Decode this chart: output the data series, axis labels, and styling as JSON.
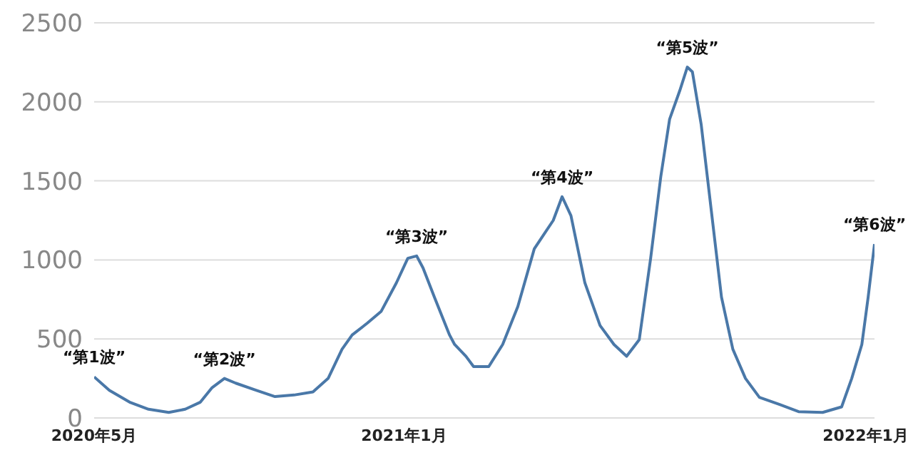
{
  "chart_data": {
    "type": "line",
    "x": [
      "2020-05-01",
      "2020-05-13",
      "2020-05-29",
      "2020-06-13",
      "2020-06-29",
      "2020-07-12",
      "2020-07-24",
      "2020-08-02",
      "2020-08-12",
      "2020-08-21",
      "2020-09-06",
      "2020-09-21",
      "2020-10-06",
      "2020-10-21",
      "2020-11-02",
      "2020-11-13",
      "2020-11-21",
      "2020-12-03",
      "2020-12-14",
      "2020-12-26",
      "2021-01-04",
      "2021-01-11",
      "2021-01-16",
      "2021-01-25",
      "2021-02-06",
      "2021-02-10",
      "2021-02-19",
      "2021-02-25",
      "2021-03-09",
      "2021-03-20",
      "2021-04-01",
      "2021-04-14",
      "2021-04-29",
      "2021-05-06",
      "2021-05-13",
      "2021-05-24",
      "2021-06-05",
      "2021-06-16",
      "2021-06-26",
      "2021-07-06",
      "2021-07-15",
      "2021-07-23",
      "2021-07-30",
      "2021-08-07",
      "2021-08-13",
      "2021-08-17",
      "2021-08-24",
      "2021-09-01",
      "2021-09-09",
      "2021-09-18",
      "2021-09-28",
      "2021-10-09",
      "2021-10-25",
      "2021-11-09",
      "2021-11-28",
      "2021-12-13",
      "2021-12-21",
      "2021-12-29",
      "2022-01-03",
      "2022-01-08"
    ],
    "series": [
      {
        "color": "#4a78a8",
        "values": [
          260,
          175,
          100,
          55,
          35,
          55,
          100,
          190,
          250,
          220,
          175,
          135,
          145,
          165,
          250,
          435,
          525,
          600,
          675,
          855,
          1010,
          1025,
          950,
          765,
          525,
          465,
          390,
          325,
          325,
          465,
          705,
          1070,
          1250,
          1400,
          1280,
          855,
          585,
          465,
          390,
          495,
          1010,
          1525,
          1890,
          2070,
          2220,
          2190,
          1855,
          1310,
          765,
          435,
          250,
          130,
          85,
          40,
          35,
          70,
          250,
          465,
          765,
          1100
        ]
      }
    ],
    "xlim": [
      "2020-05-01",
      "2022-01-08"
    ],
    "xticks": [
      {
        "value": "2020-05-01",
        "label": "2020年5月"
      },
      {
        "value": "2021-01-01",
        "label": "2021年1月"
      },
      {
        "value": "2022-01-01",
        "label": "2022年1月"
      }
    ],
    "ylim": [
      0,
      2500
    ],
    "yticks": [
      0,
      500,
      1000,
      1500,
      2000,
      2500
    ],
    "grid": "y",
    "legend": false,
    "marker": "none",
    "line_style": "solid",
    "annotations": [
      {
        "text": "“第1波”",
        "x": "2020-05-01",
        "y": 260
      },
      {
        "text": "“第2波”",
        "x": "2020-08-12",
        "y": 250
      },
      {
        "text": "“第3波”",
        "x": "2021-01-11",
        "y": 1025
      },
      {
        "text": "“第4波”",
        "x": "2021-05-06",
        "y": 1400
      },
      {
        "text": "“第5波”",
        "x": "2021-08-13",
        "y": 2220
      },
      {
        "text": "“第6波”",
        "x": "2022-01-08",
        "y": 1100
      }
    ]
  }
}
